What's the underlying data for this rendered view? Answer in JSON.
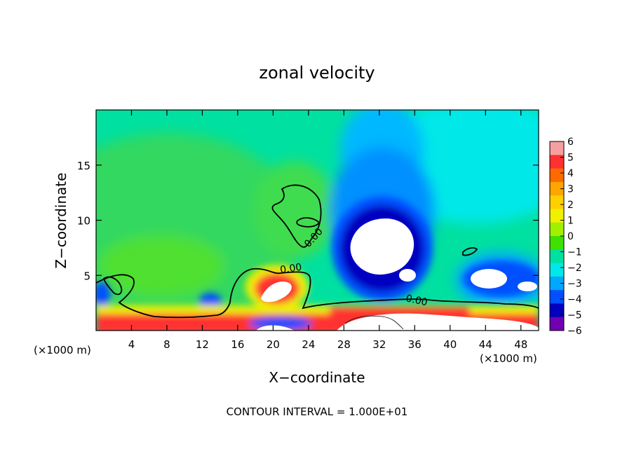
{
  "chart_data": {
    "type": "heatmap",
    "title": "zonal velocity",
    "xlabel": "X−coordinate",
    "ylabel": "Z−coordinate",
    "x_unit_left": "(×1000 m)",
    "x_unit_right": "(×1000 m)",
    "xlim": [
      0,
      50
    ],
    "ylim": [
      0,
      20
    ],
    "x_ticks": [
      4,
      8,
      12,
      16,
      20,
      24,
      28,
      32,
      36,
      40,
      44,
      48
    ],
    "y_ticks": [
      5,
      10,
      15
    ],
    "colorbar": {
      "levels": [
        6,
        5,
        4,
        3,
        2,
        1,
        0,
        -1,
        -2,
        -3,
        -4,
        -5,
        -6
      ],
      "level_labels": [
        "6",
        "5",
        "4",
        "3",
        "2",
        "1",
        "0",
        "−1",
        "−2",
        "−3",
        "−4",
        "−5",
        "−6"
      ],
      "colors": [
        "#f4a0a0",
        "#ff3030",
        "#ff6a00",
        "#ffa500",
        "#ffd000",
        "#f0f000",
        "#a0f000",
        "#40e000",
        "#00e0a0",
        "#00e8e8",
        "#00a8ff",
        "#0050ff",
        "#0000c0",
        "#7000b0"
      ]
    },
    "contour_labels": [
      "0.00",
      "0.00",
      "0.00"
    ],
    "footer": "CONTOUR INTERVAL = 1.000E+01"
  }
}
